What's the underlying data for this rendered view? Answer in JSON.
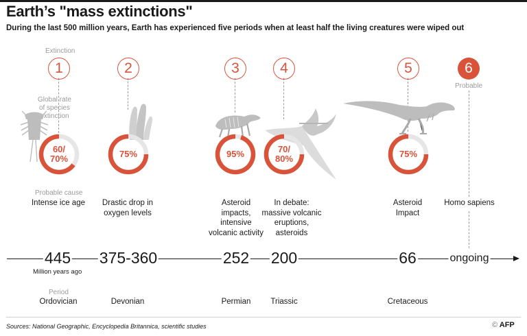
{
  "title": "Earth’s \"mass extinctions\"",
  "subtitle": "During the last 500 million years, Earth has experienced five periods when at least half the living creatures were wiped out",
  "labels": {
    "extinction": "Extinction",
    "rate_line1": "Global rate",
    "rate_line2": "of species",
    "rate_line3": "extinction",
    "probable_cause": "Probable cause",
    "million_years_ago": "Million years ago",
    "period": "Period",
    "probable": "Probable"
  },
  "events": [
    {
      "number": "1",
      "pct_line1": "60/",
      "pct_line2": "70%",
      "rate": 0.65,
      "cause_lines": [
        "Intense ice age"
      ],
      "date": "445",
      "period": "Ordovician",
      "fossil_icon": "trilobite-icon"
    },
    {
      "number": "2",
      "pct_line1": "75%",
      "pct_line2": "",
      "rate": 0.75,
      "cause_lines": [
        "Drastic drop in",
        "oxygen levels"
      ],
      "date": "375-360",
      "period": "Devonian",
      "fossil_icon": "coral-fossil-icon"
    },
    {
      "number": "3",
      "pct_line1": "95%",
      "pct_line2": "",
      "rate": 0.95,
      "cause_lines": [
        "Asteroid",
        "impacts,",
        "intensive",
        "volcanic activity"
      ],
      "date": "252",
      "period": "Permian",
      "fossil_icon": "reptile-skeleton-icon"
    },
    {
      "number": "4",
      "pct_line1": "70/",
      "pct_line2": "80%",
      "rate": 0.75,
      "cause_lines": [
        "In debate:",
        "massive volcanic",
        "eruptions,",
        "asteroids"
      ],
      "date": "200",
      "period": "Triassic",
      "fossil_icon": "pterosaur-icon"
    },
    {
      "number": "5",
      "pct_line1": "75%",
      "pct_line2": "",
      "rate": 0.75,
      "cause_lines": [
        "Asteroid",
        "Impact"
      ],
      "date": "66",
      "period": "Cretaceous",
      "fossil_icon": "dinosaur-skeleton-icon"
    },
    {
      "number": "6",
      "cause_lines": [
        "Homo sapiens"
      ],
      "date": "ongoing"
    }
  ],
  "sources": "Sources: National Geographic, Encyclopedia Britannica, scientific studies",
  "credit": "AFP",
  "credit_mark": "©",
  "colors": {
    "accent": "#d9523a",
    "track": "#e6e6e6",
    "muted": "#9a9a9a",
    "fossil": "#c9c9c9"
  }
}
